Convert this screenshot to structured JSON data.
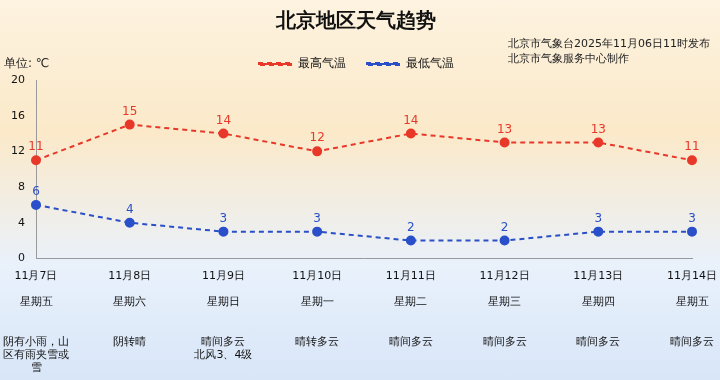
{
  "chart_data": {
    "type": "line",
    "title": "北京地区天气趋势",
    "annotations": [
      "北京市气象台2025年11月06日11时发布",
      "北京市气象服务中心制作"
    ],
    "y_label": "单位: ℃",
    "categories": [
      [
        "11月7日",
        "星期五",
        "阴有小雨，山区有雨夹雪或雪"
      ],
      [
        "11月8日",
        "星期六",
        "阴转晴"
      ],
      [
        "11月9日",
        "星期日",
        "晴间多云 北风3、4级"
      ],
      [
        "11月10日",
        "星期一",
        "晴转多云"
      ],
      [
        "11月11日",
        "星期二",
        "晴间多云"
      ],
      [
        "11月12日",
        "星期三",
        "晴间多云"
      ],
      [
        "11月13日",
        "星期四",
        "晴间多云"
      ],
      [
        "11月14日",
        "星期五",
        "晴间多云"
      ]
    ],
    "series": [
      {
        "name": "最高气温",
        "color": "#e8382a",
        "line_style": "dashed",
        "marker": "circle",
        "values": [
          11,
          15,
          14,
          12,
          14,
          13,
          13,
          11
        ]
      },
      {
        "name": "最低气温",
        "color": "#2a4fc9",
        "line_style": "dashed",
        "marker": "circle",
        "values": [
          6,
          4,
          3,
          3,
          2,
          2,
          3,
          3
        ]
      }
    ],
    "ylim": [
      0,
      20
    ],
    "yticks": [
      0,
      4,
      8,
      12,
      16,
      20
    ],
    "grid": false,
    "legend": "top",
    "data_labels": true
  }
}
